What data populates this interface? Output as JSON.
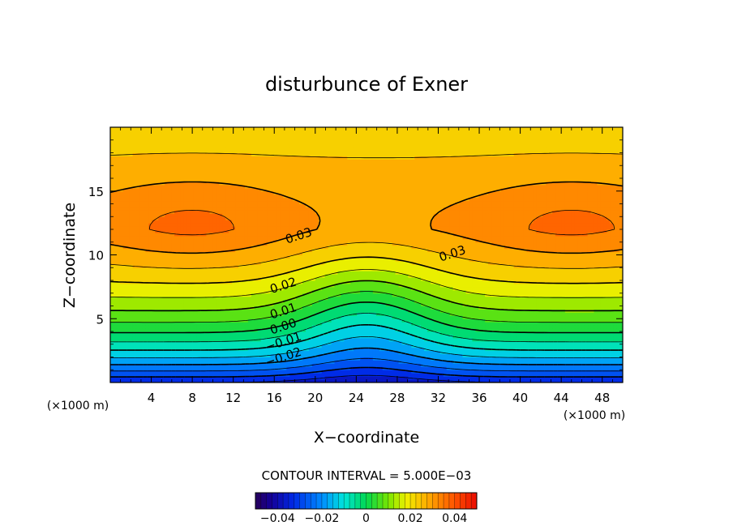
{
  "chart_data": {
    "type": "heatmap",
    "title": "disturbunce of Exner",
    "xlabel": "X−coordinate",
    "ylabel": "Z−coordinate",
    "x_unit": "(×1000 m)",
    "y_unit": "(×1000 m)",
    "xlim": [
      0,
      50
    ],
    "ylim": [
      0,
      20
    ],
    "x_ticks": [
      4,
      8,
      12,
      16,
      20,
      24,
      28,
      32,
      36,
      40,
      44,
      48
    ],
    "y_ticks": [
      5,
      10,
      15
    ],
    "contour_interval_label": "CONTOUR INTERVAL = 5.000E−03",
    "contour_interval": 0.005,
    "contour_labels": [
      {
        "text": "0.03",
        "x": 18.5,
        "y": 11.2
      },
      {
        "text": "0.03",
        "x": 33.5,
        "y": 9.8
      },
      {
        "text": "0.02",
        "x": 17.0,
        "y": 7.3
      },
      {
        "text": "0.01",
        "x": 17.0,
        "y": 5.3
      },
      {
        "text": "0.00",
        "x": 17.0,
        "y": 4.1
      },
      {
        "text": "−0.01",
        "x": 17.0,
        "y": 2.9
      },
      {
        "text": "−0.02",
        "x": 17.0,
        "y": 1.7
      }
    ],
    "colorbar": {
      "range": [
        -0.05,
        0.05
      ],
      "tick_values": [
        -0.04,
        -0.02,
        0,
        0.02,
        0.04
      ],
      "tick_labels": [
        "−0.04",
        "−0.02",
        "0",
        "0.02",
        "0.04"
      ]
    },
    "value_range": [
      -0.035,
      0.043
    ]
  }
}
